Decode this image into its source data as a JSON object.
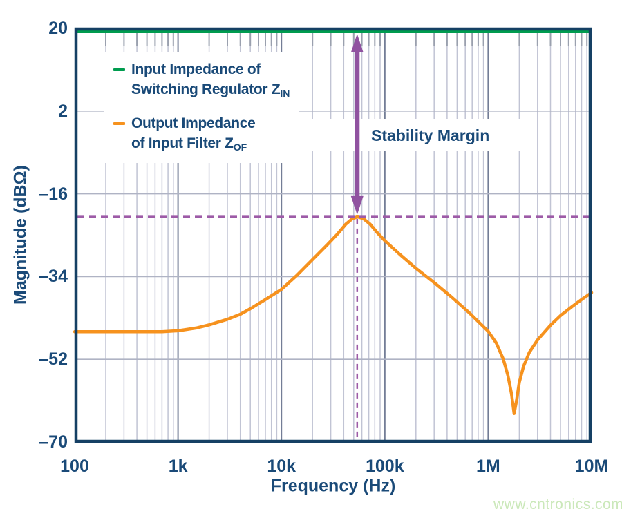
{
  "colors": {
    "navy": "#154064",
    "text": "#1a4a78",
    "green": "#009c4f",
    "orange": "#f6921e",
    "purple": "#9052a0",
    "purple_dash": "#9d5ba7",
    "grid_minor": "#c1c4d4",
    "grid_decade": "#737d96",
    "grid_h": "#afb3c4",
    "tick": "#9aa0ae",
    "watermark": "#cbe8ba"
  },
  "watermark": {
    "text": "www.cntronics.com"
  },
  "legend": {
    "items": [
      {
        "color": "#009c4f",
        "line1": "Input Impedance of",
        "line2": "Switching Regulator Z",
        "line2_sub": "IN"
      },
      {
        "color": "#f6921e",
        "line1": "Output Impedance",
        "line2": "of Input Filter Z",
        "line2_sub": "OF"
      }
    ]
  },
  "chart_data": {
    "type": "line",
    "title": "",
    "xlabel": "Frequency (Hz)",
    "ylabel": "Magnitude (dBΩ)",
    "x_scale": "log",
    "x_range_hz": [
      100,
      10000000
    ],
    "y_range_dbohm": [
      -70,
      20
    ],
    "grid": "log-minor-verticals with major horizontals",
    "legend_position": "top-left inside plot",
    "x_ticks": [
      {
        "label": "100",
        "value": 100
      },
      {
        "label": "1k",
        "value": 1000
      },
      {
        "label": "10k",
        "value": 10000
      },
      {
        "label": "100k",
        "value": 100000
      },
      {
        "label": "1M",
        "value": 1000000
      },
      {
        "label": "10M",
        "value": 10000000
      }
    ],
    "y_ticks": [
      {
        "label": "20",
        "value": 20
      },
      {
        "label": "2",
        "value": 2
      },
      {
        "label": "–16",
        "value": -16
      },
      {
        "label": "–34",
        "value": -34
      },
      {
        "label": "–52",
        "value": -52
      },
      {
        "label": "–70",
        "value": -70
      }
    ],
    "series": [
      {
        "name": "Input Impedance of Switching Regulator ZIN",
        "color": "#009c4f",
        "points": [
          [
            100,
            20
          ],
          [
            10000000,
            20
          ]
        ]
      },
      {
        "name": "Output Impedance of Input Filter ZOF",
        "color": "#f6921e",
        "points": [
          [
            100,
            -46
          ],
          [
            200,
            -46
          ],
          [
            400,
            -46
          ],
          [
            700,
            -46
          ],
          [
            1000,
            -45.8
          ],
          [
            1500,
            -45.2
          ],
          [
            2000,
            -44.5
          ],
          [
            3000,
            -43.3
          ],
          [
            4000,
            -42.2
          ],
          [
            5000,
            -41
          ],
          [
            7000,
            -39
          ],
          [
            10000,
            -36.8
          ],
          [
            14000,
            -33.8
          ],
          [
            20000,
            -30.3
          ],
          [
            28000,
            -27
          ],
          [
            35000,
            -24.7
          ],
          [
            42000,
            -22.6
          ],
          [
            48000,
            -21.5
          ],
          [
            54000,
            -21
          ],
          [
            62000,
            -21.4
          ],
          [
            72000,
            -22.6
          ],
          [
            85000,
            -24.5
          ],
          [
            100000,
            -26.2
          ],
          [
            140000,
            -29.2
          ],
          [
            200000,
            -32.2
          ],
          [
            300000,
            -35.3
          ],
          [
            450000,
            -38.6
          ],
          [
            650000,
            -41.8
          ],
          [
            1000000,
            -45.9
          ],
          [
            1200000,
            -48.5
          ],
          [
            1400000,
            -52
          ],
          [
            1550000,
            -55.5
          ],
          [
            1680000,
            -59.5
          ],
          [
            1780000,
            -63.8
          ],
          [
            1880000,
            -61
          ],
          [
            2000000,
            -57
          ],
          [
            2200000,
            -53.5
          ],
          [
            2500000,
            -50.5
          ],
          [
            3000000,
            -47.8
          ],
          [
            4000000,
            -44.6
          ],
          [
            5000000,
            -42.5
          ],
          [
            6500000,
            -40.5
          ],
          [
            8000000,
            -39
          ],
          [
            10000000,
            -37.5
          ]
        ]
      }
    ],
    "annotations": {
      "stability_margin": {
        "label": "Stability Margin",
        "freq_hz": 54000,
        "from_db": 20,
        "to_db": -21
      },
      "dashed_h_line_db": -21,
      "dashed_v_line_hz": 54000
    }
  }
}
